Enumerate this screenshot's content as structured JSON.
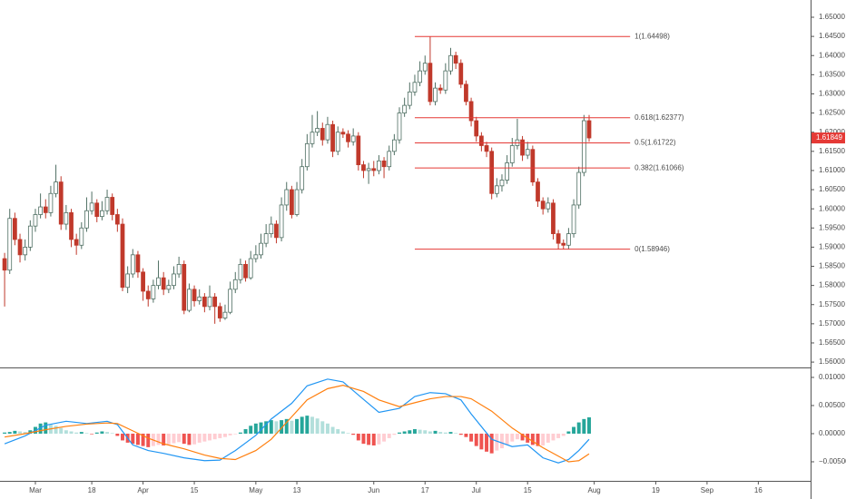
{
  "chart_data": [
    {
      "type": "candlestick",
      "x": [
        0,
        1,
        2,
        3,
        4,
        5,
        6,
        7,
        8,
        9,
        10,
        11,
        12,
        13,
        14,
        15,
        16,
        17,
        18,
        19,
        20,
        21,
        22,
        23,
        24,
        25,
        26,
        27,
        28,
        29,
        30,
        31,
        32,
        33,
        34,
        35,
        36,
        37,
        38,
        39,
        40,
        41,
        42,
        43,
        44,
        45,
        46,
        47,
        48,
        49,
        50,
        51,
        52,
        53,
        54,
        55,
        56,
        57,
        58,
        59,
        60,
        61,
        62,
        63,
        64,
        65,
        66,
        67,
        68,
        69,
        70,
        71,
        72,
        73,
        74,
        75,
        76,
        77,
        78,
        79,
        80,
        81,
        82,
        83,
        84,
        85,
        86,
        87,
        88,
        89,
        90,
        91,
        92,
        93,
        94,
        95,
        96,
        97,
        98,
        99,
        100,
        101,
        102,
        103,
        104,
        105,
        106,
        107,
        108,
        109,
        110,
        111,
        112,
        113,
        114
      ],
      "open": [
        1.587,
        1.584,
        1.5975,
        1.592,
        1.588,
        1.59,
        1.5955,
        1.5985,
        1.6005,
        1.599,
        1.604,
        1.607,
        1.596,
        1.599,
        1.592,
        1.5905,
        1.595,
        1.5995,
        1.6015,
        1.598,
        1.5995,
        1.603,
        1.5985,
        1.596,
        1.5795,
        1.583,
        1.588,
        1.5835,
        1.5785,
        1.5765,
        1.58,
        1.582,
        1.579,
        1.58,
        1.583,
        1.5855,
        1.5735,
        1.579,
        1.576,
        1.577,
        1.5745,
        1.577,
        1.5745,
        1.5715,
        1.573,
        1.579,
        1.5815,
        1.5855,
        1.582,
        1.587,
        1.588,
        1.591,
        1.5935,
        1.596,
        1.5925,
        1.601,
        1.605,
        1.5985,
        1.605,
        1.611,
        1.617,
        1.62,
        1.621,
        1.618,
        1.622,
        1.615,
        1.62,
        1.6195,
        1.6175,
        1.619,
        1.6115,
        1.61,
        1.6105,
        1.61,
        1.6125,
        1.611,
        1.615,
        1.618,
        1.625,
        1.627,
        1.6305,
        1.633,
        1.636,
        1.638,
        1.628,
        1.6315,
        1.631,
        1.636,
        1.64,
        1.638,
        1.6325,
        1.628,
        1.623,
        1.619,
        1.6165,
        1.615,
        1.604,
        1.606,
        1.6075,
        1.612,
        1.6165,
        1.618,
        1.614,
        1.6155,
        1.607,
        1.602,
        1.6,
        1.6015,
        1.5935,
        1.591,
        1.5905,
        1.5935,
        1.601,
        1.6095,
        1.623
      ],
      "high": [
        1.5885,
        1.6,
        1.599,
        1.5935,
        1.592,
        1.597,
        1.6,
        1.604,
        1.6025,
        1.606,
        1.6115,
        1.6085,
        1.601,
        1.6,
        1.5935,
        1.5965,
        1.603,
        1.6045,
        1.6025,
        1.602,
        1.605,
        1.604,
        1.6,
        1.5975,
        1.585,
        1.5895,
        1.589,
        1.5845,
        1.58,
        1.5815,
        1.5865,
        1.5835,
        1.5815,
        1.585,
        1.5875,
        1.5865,
        1.5805,
        1.58,
        1.579,
        1.578,
        1.58,
        1.578,
        1.5755,
        1.575,
        1.581,
        1.5835,
        1.587,
        1.5865,
        1.589,
        1.5905,
        1.5935,
        1.596,
        1.598,
        1.597,
        1.603,
        1.607,
        1.606,
        1.607,
        1.613,
        1.6195,
        1.6245,
        1.6255,
        1.6225,
        1.624,
        1.623,
        1.6215,
        1.621,
        1.6205,
        1.621,
        1.62,
        1.6125,
        1.612,
        1.6125,
        1.614,
        1.6135,
        1.6165,
        1.6195,
        1.6265,
        1.629,
        1.633,
        1.635,
        1.6385,
        1.64,
        1.645,
        1.633,
        1.6325,
        1.638,
        1.642,
        1.641,
        1.639,
        1.6335,
        1.629,
        1.624,
        1.62,
        1.6175,
        1.616,
        1.608,
        1.609,
        1.614,
        1.6185,
        1.6235,
        1.619,
        1.6175,
        1.6165,
        1.608,
        1.603,
        1.603,
        1.6025,
        1.5945,
        1.592,
        1.595,
        1.6025,
        1.611,
        1.6245,
        1.6245
      ],
      "low": [
        1.5745,
        1.583,
        1.5905,
        1.586,
        1.5865,
        1.589,
        1.594,
        1.5975,
        1.5975,
        1.598,
        1.603,
        1.5945,
        1.5945,
        1.59,
        1.588,
        1.5895,
        1.594,
        1.5985,
        1.5965,
        1.597,
        1.5985,
        1.597,
        1.594,
        1.5785,
        1.578,
        1.582,
        1.582,
        1.576,
        1.5745,
        1.5755,
        1.579,
        1.5775,
        1.578,
        1.579,
        1.582,
        1.5725,
        1.573,
        1.5745,
        1.575,
        1.573,
        1.5735,
        1.57,
        1.5705,
        1.571,
        1.5725,
        1.578,
        1.5805,
        1.581,
        1.5815,
        1.586,
        1.587,
        1.59,
        1.5925,
        1.591,
        1.5915,
        1.5995,
        1.5975,
        1.598,
        1.604,
        1.61,
        1.616,
        1.619,
        1.6165,
        1.617,
        1.6135,
        1.614,
        1.6185,
        1.616,
        1.6165,
        1.61,
        1.608,
        1.6065,
        1.6085,
        1.609,
        1.608,
        1.61,
        1.614,
        1.617,
        1.624,
        1.626,
        1.6295,
        1.632,
        1.635,
        1.627,
        1.627,
        1.63,
        1.63,
        1.635,
        1.6365,
        1.6315,
        1.627,
        1.6215,
        1.6175,
        1.615,
        1.6135,
        1.6025,
        1.603,
        1.6045,
        1.6065,
        1.611,
        1.6155,
        1.6125,
        1.613,
        1.606,
        1.6005,
        1.5985,
        1.599,
        1.592,
        1.5895,
        1.58946,
        1.5895,
        1.5925,
        1.6,
        1.6085,
        1.6175
      ],
      "close": [
        1.584,
        1.5975,
        1.592,
        1.588,
        1.59,
        1.5955,
        1.5985,
        1.6005,
        1.599,
        1.604,
        1.607,
        1.596,
        1.599,
        1.592,
        1.5905,
        1.595,
        1.5995,
        1.6015,
        1.598,
        1.5995,
        1.603,
        1.5985,
        1.596,
        1.5795,
        1.583,
        1.588,
        1.5835,
        1.5785,
        1.5765,
        1.58,
        1.582,
        1.579,
        1.58,
        1.583,
        1.5855,
        1.5735,
        1.579,
        1.576,
        1.577,
        1.5745,
        1.577,
        1.5745,
        1.5715,
        1.573,
        1.579,
        1.5815,
        1.5855,
        1.582,
        1.587,
        1.588,
        1.591,
        1.5935,
        1.596,
        1.5925,
        1.601,
        1.605,
        1.5985,
        1.605,
        1.611,
        1.617,
        1.62,
        1.621,
        1.618,
        1.622,
        1.615,
        1.62,
        1.6195,
        1.6175,
        1.619,
        1.6115,
        1.61,
        1.6105,
        1.61,
        1.6125,
        1.611,
        1.615,
        1.618,
        1.625,
        1.627,
        1.6305,
        1.633,
        1.636,
        1.638,
        1.628,
        1.6315,
        1.631,
        1.636,
        1.64,
        1.638,
        1.6325,
        1.628,
        1.623,
        1.619,
        1.6165,
        1.615,
        1.604,
        1.606,
        1.6075,
        1.612,
        1.6165,
        1.618,
        1.614,
        1.6155,
        1.607,
        1.602,
        1.6,
        1.6015,
        1.5935,
        1.591,
        1.5905,
        1.5935,
        1.601,
        1.6095,
        1.623,
        1.6185
      ],
      "up_color": "#ffffff",
      "up_border": "#4f6f63",
      "down_color": "#c0392b",
      "xlim": [
        -0.9,
        157.2
      ],
      "xticks": [
        {
          "value": 6,
          "label": "Mar"
        },
        {
          "value": 17,
          "label": "18"
        },
        {
          "value": 27,
          "label": "Apr"
        },
        {
          "value": 37,
          "label": "15"
        },
        {
          "value": 49,
          "label": "May"
        },
        {
          "value": 57,
          "label": "13"
        },
        {
          "value": 72,
          "label": "Jun"
        },
        {
          "value": 82,
          "label": "17"
        },
        {
          "value": 92,
          "label": "Jul"
        },
        {
          "value": 102,
          "label": "15"
        },
        {
          "value": 115,
          "label": "Aug"
        },
        {
          "value": 127,
          "label": "19"
        },
        {
          "value": 137,
          "label": "Sep"
        },
        {
          "value": 147,
          "label": "16"
        }
      ],
      "ylim": [
        1.5586,
        1.6545
      ],
      "yticks": [
        {
          "value": 1.56,
          "label": "1.56000"
        },
        {
          "value": 1.565,
          "label": "1.56500"
        },
        {
          "value": 1.57,
          "label": "1.57000"
        },
        {
          "value": 1.575,
          "label": "1.57500"
        },
        {
          "value": 1.58,
          "label": "1.58000"
        },
        {
          "value": 1.585,
          "label": "1.58500"
        },
        {
          "value": 1.59,
          "label": "1.59000"
        },
        {
          "value": 1.595,
          "label": "1.59500"
        },
        {
          "value": 1.6,
          "label": "1.60000"
        },
        {
          "value": 1.605,
          "label": "1.60500"
        },
        {
          "value": 1.61,
          "label": "1.61000"
        },
        {
          "value": 1.615,
          "label": "1.61500"
        },
        {
          "value": 1.62,
          "label": "1.62000"
        },
        {
          "value": 1.625,
          "label": "1.62500"
        },
        {
          "value": 1.63,
          "label": "1.63000"
        },
        {
          "value": 1.635,
          "label": "1.63500"
        },
        {
          "value": 1.64,
          "label": "1.64000"
        },
        {
          "value": 1.645,
          "label": "1.64500"
        },
        {
          "value": 1.65,
          "label": "1.65000"
        }
      ],
      "last_price": {
        "value": 1.61849,
        "label": "1.61849",
        "color": "#e53935"
      },
      "fib": {
        "x": [
          80,
          122
        ],
        "color": "#e53935",
        "levels": [
          {
            "value": 1.64498,
            "label": "1(1.64498)"
          },
          {
            "value": 1.62377,
            "label": "0.618(1.62377)"
          },
          {
            "value": 1.61722,
            "label": "0.5(1.61722)"
          },
          {
            "value": 1.61066,
            "label": "0.382(1.61066)"
          },
          {
            "value": 1.58946,
            "label": "0(1.58946)"
          }
        ]
      }
    },
    {
      "type": "macd",
      "x": [
        0,
        1,
        2,
        3,
        4,
        5,
        6,
        7,
        8,
        9,
        10,
        11,
        12,
        13,
        14,
        15,
        16,
        17,
        18,
        19,
        20,
        21,
        22,
        23,
        24,
        25,
        26,
        27,
        28,
        29,
        30,
        31,
        32,
        33,
        34,
        35,
        36,
        37,
        38,
        39,
        40,
        41,
        42,
        43,
        44,
        45,
        46,
        47,
        48,
        49,
        50,
        51,
        52,
        53,
        54,
        55,
        56,
        57,
        58,
        59,
        60,
        61,
        62,
        63,
        64,
        65,
        66,
        67,
        68,
        69,
        70,
        71,
        72,
        73,
        74,
        75,
        76,
        77,
        78,
        79,
        80,
        81,
        82,
        83,
        84,
        85,
        86,
        87,
        88,
        89,
        90,
        91,
        92,
        93,
        94,
        95,
        96,
        97,
        98,
        99,
        100,
        101,
        102,
        103,
        104,
        105,
        106,
        107,
        108,
        109,
        110,
        111,
        112,
        113,
        114
      ],
      "histogram": [
        0.0002,
        0.0003,
        0.0005,
        0.0004,
        0.0003,
        0.0006,
        0.0012,
        0.0018,
        0.002,
        0.0016,
        0.0014,
        0.001,
        0.0006,
        0.0004,
        0.0002,
        0.0003,
        0.0001,
        -0.0001,
        0.0002,
        0.0004,
        0.0003,
        0.0001,
        -0.0004,
        -0.0012,
        -0.0016,
        -0.0018,
        -0.002,
        -0.0022,
        -0.0024,
        -0.0022,
        -0.002,
        -0.0021,
        -0.0019,
        -0.0017,
        -0.0015,
        -0.0018,
        -0.002,
        -0.0019,
        -0.0016,
        -0.0014,
        -0.0012,
        -0.001,
        -0.0008,
        -0.0006,
        -0.0003,
        -0.0001,
        0.0002,
        0.0008,
        0.0014,
        0.0018,
        0.002,
        0.0022,
        0.0024,
        0.0022,
        0.0024,
        0.0026,
        0.0023,
        0.0026,
        0.003,
        0.0032,
        0.003,
        0.0027,
        0.0022,
        0.0018,
        0.0012,
        0.0008,
        0.0004,
        0.0001,
        -0.0002,
        -0.0012,
        -0.0018,
        -0.002,
        -0.0021,
        -0.0019,
        -0.0014,
        -0.0008,
        -0.0002,
        0.0002,
        0.0004,
        0.0006,
        0.0008,
        0.0007,
        0.0006,
        0.0004,
        0.0005,
        0.0003,
        0.0002,
        0.0003,
        0.0001,
        -0.0002,
        -0.0006,
        -0.0014,
        -0.0022,
        -0.0028,
        -0.0032,
        -0.0035,
        -0.003,
        -0.0026,
        -0.002,
        -0.0014,
        -0.001,
        -0.0012,
        -0.0016,
        -0.002,
        -0.0022,
        -0.0021,
        -0.0016,
        -0.0012,
        -0.0008,
        -0.0004,
        0.0004,
        0.0012,
        0.002,
        0.0026,
        0.0029
      ],
      "histogram_colors": {
        "rising_positive": "#26a69a",
        "falling_positive": "#b2dfdb",
        "falling_negative": "#ef5350",
        "rising_negative": "#ffcdd2"
      },
      "lines": [
        {
          "color": "#2196f3",
          "x": [
            0,
            4,
            8,
            12,
            16,
            20,
            22,
            25,
            28,
            31,
            35,
            39,
            42,
            45,
            49,
            52,
            56,
            59,
            63,
            66,
            70,
            73,
            77,
            80,
            83,
            86,
            89,
            91,
            95,
            99,
            102,
            105,
            108,
            110,
            112,
            114
          ],
          "values": [
            -0.0018,
            -0.0004,
            0.0015,
            0.0022,
            0.0018,
            0.0022,
            0.0016,
            -0.002,
            -0.003,
            -0.0035,
            -0.0043,
            -0.0048,
            -0.0047,
            -0.003,
            -0.0003,
            0.0026,
            0.0054,
            0.0085,
            0.0097,
            0.0092,
            0.0061,
            0.0038,
            0.0045,
            0.0066,
            0.0073,
            0.0071,
            0.006,
            0.0035,
            -0.001,
            -0.0023,
            -0.002,
            -0.0043,
            -0.0052,
            -0.0046,
            -0.003,
            -0.001
          ]
        },
        {
          "color": "#ff7f0e",
          "x": [
            0,
            4,
            8,
            12,
            16,
            20,
            22,
            25,
            28,
            31,
            35,
            39,
            42,
            45,
            49,
            52,
            56,
            59,
            63,
            66,
            70,
            73,
            77,
            80,
            83,
            86,
            89,
            91,
            95,
            99,
            102,
            105,
            108,
            110,
            112,
            114
          ],
          "values": [
            -0.0006,
            0.0,
            0.0007,
            0.0013,
            0.0017,
            0.0019,
            0.0018,
            0.0005,
            -0.0008,
            -0.0018,
            -0.0027,
            -0.0038,
            -0.0044,
            -0.0046,
            -0.003,
            -0.001,
            0.003,
            0.006,
            0.008,
            0.0086,
            0.0075,
            0.006,
            0.0048,
            0.0055,
            0.0062,
            0.0066,
            0.0066,
            0.0062,
            0.004,
            0.001,
            -0.0008,
            -0.0025,
            -0.004,
            -0.005,
            -0.0048,
            -0.0036
          ]
        }
      ],
      "xlim": [
        -0.9,
        157.2
      ],
      "ylim": [
        -0.00839,
        0.01177
      ],
      "yticks": [
        {
          "value": 0.01,
          "label": "0.01000"
        },
        {
          "value": 0.005,
          "label": "0.00500"
        },
        {
          "value": 0,
          "label": "0.00000"
        },
        {
          "value": -0.005,
          "label": "−0.00500"
        }
      ]
    }
  ]
}
